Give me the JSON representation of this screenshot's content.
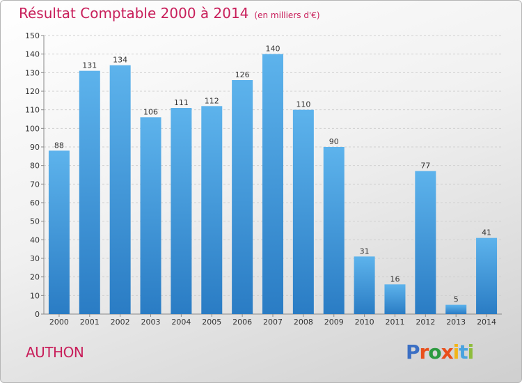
{
  "chart_data": {
    "type": "bar",
    "title": "Résultat Comptable 2000 à 2014",
    "units": "(en milliers d'€)",
    "categories": [
      "2000",
      "2001",
      "2002",
      "2003",
      "2004",
      "2005",
      "2006",
      "2007",
      "2008",
      "2009",
      "2010",
      "2011",
      "2012",
      "2013",
      "2014"
    ],
    "values": [
      88,
      131,
      134,
      106,
      111,
      112,
      126,
      140,
      110,
      90,
      31,
      16,
      77,
      5,
      41
    ],
    "ylim": [
      0,
      150
    ],
    "yticks": [
      0,
      10,
      20,
      30,
      40,
      50,
      60,
      70,
      80,
      90,
      100,
      110,
      120,
      130,
      140,
      150
    ],
    "grid": true,
    "bar_color": "#4a9fdc",
    "title_color": "#c81e5a"
  },
  "commune": "AUTHON",
  "logo": {
    "text": "Proxiti"
  }
}
